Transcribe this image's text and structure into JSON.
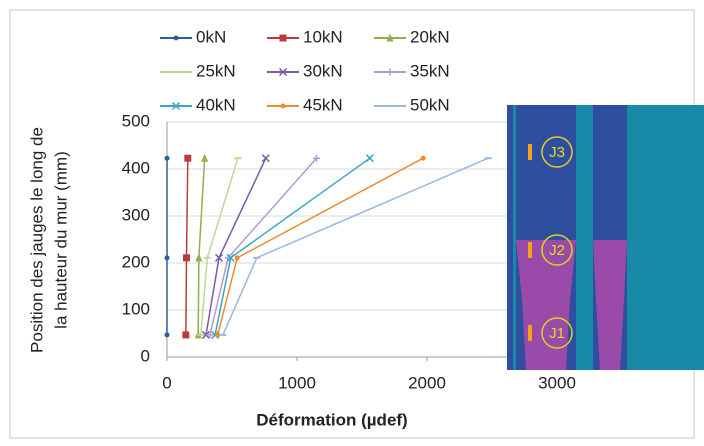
{
  "chart_data": {
    "type": "line",
    "x_label": "Déformation (µdef)",
    "y_label": [
      "Position des jauges le long de",
      "la hauteur du mur (mm)"
    ],
    "xlim": [
      0,
      4000
    ],
    "xticks": [
      0,
      1000,
      2000,
      3000
    ],
    "ylim": [
      0,
      500
    ],
    "yticks": [
      0,
      100,
      200,
      300,
      400,
      500
    ],
    "grid": true,
    "series": [
      {
        "name": "0kN",
        "color": "#2e5d9e",
        "marker": "circle",
        "x": [
          0,
          0,
          0
        ],
        "values": [
          47,
          211,
          423
        ]
      },
      {
        "name": "10kN",
        "color": "#be3a3a",
        "marker": "square",
        "x": [
          145,
          150,
          160
        ],
        "values": [
          47,
          211,
          423
        ]
      },
      {
        "name": "20kN",
        "color": "#8fb04a",
        "marker": "triangle",
        "x": [
          240,
          245,
          290
        ],
        "values": [
          47,
          211,
          423
        ]
      },
      {
        "name": "25kN",
        "color": "#bcd89a",
        "marker": "dash",
        "x": [
          260,
          310,
          545
        ],
        "values": [
          47,
          211,
          423
        ]
      },
      {
        "name": "30kN",
        "color": "#7b5ca8",
        "marker": "x",
        "x": [
          300,
          400,
          760
        ],
        "values": [
          47,
          211,
          423
        ]
      },
      {
        "name": "35kN",
        "color": "#b49ad6",
        "marker": "plus",
        "x": [
          330,
          470,
          1150
        ],
        "values": [
          47,
          211,
          423
        ]
      },
      {
        "name": "40kN",
        "color": "#3aa6c4",
        "marker": "x",
        "x": [
          370,
          490,
          1560
        ],
        "values": [
          47,
          211,
          423
        ]
      },
      {
        "name": "45kN",
        "color": "#ef8a2d",
        "marker": "circle",
        "x": [
          390,
          540,
          1970
        ],
        "values": [
          47,
          211,
          423
        ]
      },
      {
        "name": "50kN",
        "color": "#9ab8e0",
        "marker": "dash",
        "x": [
          430,
          690,
          2470
        ],
        "values": [
          47,
          211,
          423
        ]
      }
    ],
    "gauge_labels": [
      "J3",
      "J2",
      "J1"
    ]
  }
}
